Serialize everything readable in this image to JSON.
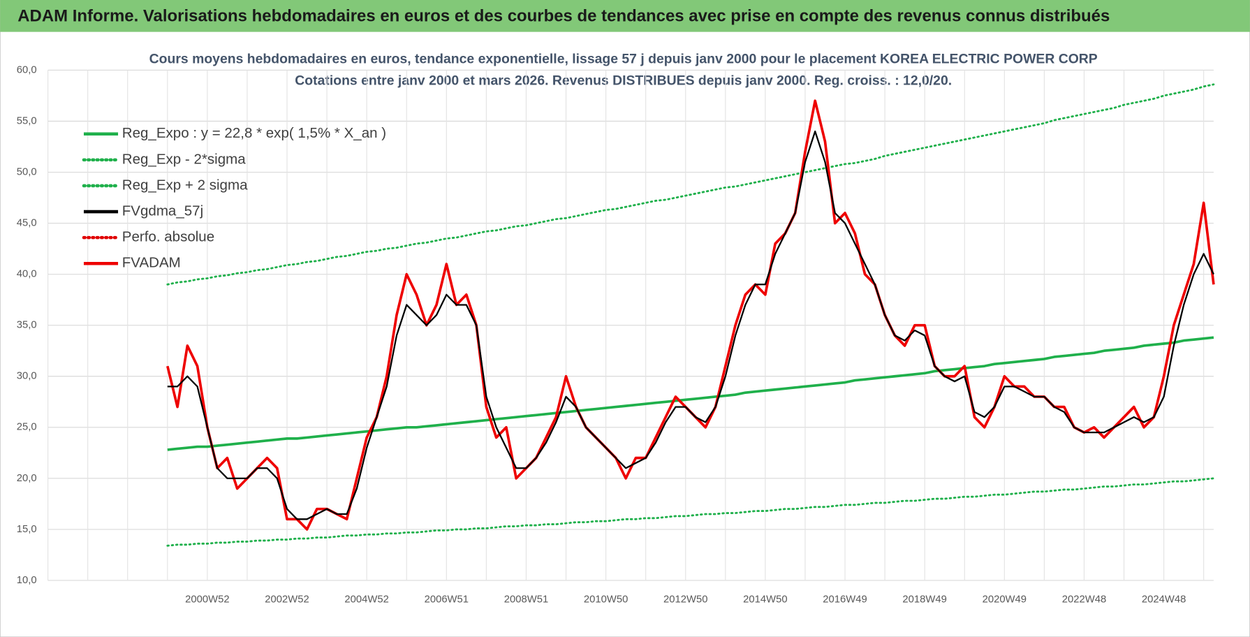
{
  "header": {
    "title": "ADAM Informe. Valorisations hebdomadaires en euros et des courbes de tendances avec prise en compte des revenus connus distribués"
  },
  "chart_data": {
    "type": "line",
    "title": "Cours moyens hebdomadaires en euros, tendance exponentielle, lissage 57 j depuis janv 2000  pour le placement KOREA ELECTRIC POWER CORP",
    "subtitle": "Cotations entre janv 2000 et mars 2026. Revenus DISTRIBUES depuis janv 2000. Reg. croiss. : 12,0/20.",
    "categories": [
      null,
      null,
      null,
      null,
      null,
      null,
      null,
      null,
      null,
      null,
      null,
      null,
      null,
      null,
      null,
      null,
      "2000W52",
      null,
      null,
      null,
      null,
      null,
      null,
      null,
      "2002W52",
      null,
      null,
      null,
      null,
      null,
      null,
      null,
      "2004W52",
      null,
      null,
      null,
      null,
      null,
      null,
      null,
      "2006W51",
      null,
      null,
      null,
      null,
      null,
      null,
      null,
      "2008W51",
      null,
      null,
      null,
      null,
      null,
      null,
      null,
      "2010W50",
      null,
      null,
      null,
      null,
      null,
      null,
      null,
      "2012W50",
      null,
      null,
      null,
      null,
      null,
      null,
      null,
      "2014W50",
      null,
      null,
      null,
      null,
      null,
      null,
      null,
      "2016W49",
      null,
      null,
      null,
      null,
      null,
      null,
      null,
      "2018W49",
      null,
      null,
      null,
      null,
      null,
      null,
      null,
      "2020W49",
      null,
      null,
      null,
      null,
      null,
      null,
      null,
      "2022W48",
      null,
      null,
      null,
      null,
      null,
      null,
      null,
      "2024W48",
      null,
      null,
      null,
      null,
      null
    ],
    "ylim": [
      10,
      60
    ],
    "yticks": [
      {
        "value": 10,
        "label": "10,0"
      },
      {
        "value": 15,
        "label": "15,0"
      },
      {
        "value": 20,
        "label": "20,0"
      },
      {
        "value": 25,
        "label": "25,0"
      },
      {
        "value": 30,
        "label": "30,0"
      },
      {
        "value": 35,
        "label": "35,0"
      },
      {
        "value": 40,
        "label": "40,0"
      },
      {
        "value": 45,
        "label": "45,0"
      },
      {
        "value": 50,
        "label": "50,0"
      },
      {
        "value": 55,
        "label": "55,0"
      },
      {
        "value": 60,
        "label": "60,0"
      }
    ],
    "grid": true,
    "legend": "top-left",
    "series": [
      {
        "name": "Reg_Expo : y = 22,8 * exp( 1,5% *  X_an )",
        "color": "#1fb04b",
        "line_style": "solid",
        "values": [
          null,
          null,
          null,
          null,
          null,
          null,
          null,
          null,
          null,
          null,
          null,
          null,
          22.8,
          22.9,
          23.0,
          23.1,
          23.1,
          23.2,
          23.3,
          23.4,
          23.5,
          23.6,
          23.7,
          23.8,
          23.9,
          23.9,
          24.0,
          24.1,
          24.2,
          24.3,
          24.4,
          24.5,
          24.6,
          24.7,
          24.8,
          24.9,
          25.0,
          25.0,
          25.1,
          25.2,
          25.3,
          25.4,
          25.5,
          25.6,
          25.7,
          25.8,
          25.9,
          26.0,
          26.1,
          26.2,
          26.3,
          26.4,
          26.5,
          26.6,
          26.7,
          26.8,
          26.9,
          27.0,
          27.1,
          27.2,
          27.3,
          27.4,
          27.5,
          27.6,
          27.7,
          27.8,
          27.9,
          28.0,
          28.1,
          28.2,
          28.4,
          28.5,
          28.6,
          28.7,
          28.8,
          28.9,
          29.0,
          29.1,
          29.2,
          29.3,
          29.4,
          29.6,
          29.7,
          29.8,
          29.9,
          30.0,
          30.1,
          30.2,
          30.3,
          30.5,
          30.6,
          30.7,
          30.8,
          30.9,
          31.0,
          31.2,
          31.3,
          31.4,
          31.5,
          31.6,
          31.7,
          31.9,
          32.0,
          32.1,
          32.2,
          32.3,
          32.5,
          32.6,
          32.7,
          32.8,
          33.0,
          33.1,
          33.2,
          33.3,
          33.5,
          33.6,
          33.7,
          33.8
        ]
      },
      {
        "name": "Reg_Exp - 2*sigma",
        "color": "#1fb04b",
        "line_style": "dotted",
        "values": [
          null,
          null,
          null,
          null,
          null,
          null,
          null,
          null,
          null,
          null,
          null,
          null,
          13.4,
          13.5,
          13.5,
          13.6,
          13.6,
          13.7,
          13.7,
          13.8,
          13.8,
          13.9,
          13.9,
          14.0,
          14.0,
          14.1,
          14.1,
          14.2,
          14.2,
          14.3,
          14.4,
          14.4,
          14.5,
          14.5,
          14.6,
          14.6,
          14.7,
          14.7,
          14.8,
          14.9,
          14.9,
          15.0,
          15.0,
          15.1,
          15.1,
          15.2,
          15.3,
          15.3,
          15.4,
          15.4,
          15.5,
          15.5,
          15.6,
          15.7,
          15.7,
          15.8,
          15.8,
          15.9,
          16.0,
          16.0,
          16.1,
          16.1,
          16.2,
          16.3,
          16.3,
          16.4,
          16.5,
          16.5,
          16.6,
          16.6,
          16.7,
          16.8,
          16.8,
          16.9,
          17.0,
          17.0,
          17.1,
          17.2,
          17.2,
          17.3,
          17.4,
          17.4,
          17.5,
          17.6,
          17.6,
          17.7,
          17.8,
          17.8,
          17.9,
          18.0,
          18.0,
          18.1,
          18.2,
          18.2,
          18.3,
          18.4,
          18.4,
          18.5,
          18.6,
          18.7,
          18.7,
          18.8,
          18.9,
          18.9,
          19.0,
          19.1,
          19.2,
          19.2,
          19.3,
          19.4,
          19.4,
          19.5,
          19.6,
          19.7,
          19.7,
          19.8,
          19.9,
          20.0
        ]
      },
      {
        "name": "Reg_Exp + 2 sigma",
        "color": "#1fb04b",
        "line_style": "dotted",
        "values": [
          null,
          null,
          null,
          null,
          null,
          null,
          null,
          null,
          null,
          null,
          null,
          null,
          39.0,
          39.2,
          39.3,
          39.5,
          39.6,
          39.8,
          39.9,
          40.1,
          40.2,
          40.4,
          40.5,
          40.7,
          40.9,
          41.0,
          41.2,
          41.3,
          41.5,
          41.7,
          41.8,
          42.0,
          42.2,
          42.3,
          42.5,
          42.6,
          42.8,
          43.0,
          43.1,
          43.3,
          43.5,
          43.6,
          43.8,
          44.0,
          44.2,
          44.3,
          44.5,
          44.7,
          44.8,
          45.0,
          45.2,
          45.4,
          45.5,
          45.7,
          45.9,
          46.1,
          46.3,
          46.4,
          46.6,
          46.8,
          47.0,
          47.2,
          47.3,
          47.5,
          47.7,
          47.9,
          48.1,
          48.3,
          48.5,
          48.6,
          48.8,
          49.0,
          49.2,
          49.4,
          49.6,
          49.8,
          50.0,
          50.2,
          50.4,
          50.6,
          50.8,
          50.9,
          51.1,
          51.3,
          51.6,
          51.8,
          52.0,
          52.2,
          52.4,
          52.6,
          52.8,
          53.0,
          53.2,
          53.4,
          53.6,
          53.8,
          54.0,
          54.2,
          54.4,
          54.6,
          54.8,
          55.1,
          55.3,
          55.5,
          55.7,
          55.9,
          56.1,
          56.3,
          56.6,
          56.8,
          57.0,
          57.2,
          57.5,
          57.7,
          57.9,
          58.1,
          58.4,
          58.6
        ]
      },
      {
        "name": "FVgdma_57j",
        "color": "#000000",
        "line_style": "solid",
        "values": [
          null,
          null,
          null,
          null,
          null,
          null,
          null,
          null,
          null,
          null,
          null,
          null,
          29,
          29,
          30,
          29,
          25,
          21,
          20,
          20,
          20,
          21,
          21,
          20,
          17,
          16,
          16,
          16.5,
          17,
          16.5,
          16.5,
          19,
          23,
          26,
          29,
          34,
          37,
          36,
          35,
          36,
          38,
          37,
          37,
          35,
          28,
          25,
          23,
          21,
          21,
          22,
          23.5,
          25.5,
          28,
          27,
          25,
          24,
          23,
          22,
          21,
          21.5,
          22,
          23.5,
          25.5,
          27,
          27,
          26,
          25.5,
          27,
          30,
          34,
          37,
          39,
          39,
          42,
          44,
          46,
          51,
          54,
          51,
          46,
          45,
          43,
          41,
          39,
          36,
          34,
          33.5,
          34.5,
          34,
          31,
          30,
          29.5,
          30,
          26.5,
          26,
          27,
          29,
          29,
          28.5,
          28,
          28,
          27,
          26.5,
          25,
          24.5,
          24.5,
          24.5,
          25,
          25.5,
          26,
          25.5,
          26,
          28,
          33,
          37,
          40,
          42,
          40
        ]
      },
      {
        "name": "Perfo. absolue",
        "color": "#e00000",
        "line_style": "dotted",
        "values": [
          null,
          null,
          null,
          null,
          null,
          null,
          null,
          null,
          null,
          null,
          null,
          null,
          null,
          null,
          null,
          null,
          null,
          null,
          null,
          null,
          null,
          null,
          null,
          null,
          null,
          null,
          null,
          null,
          null,
          null,
          null,
          null,
          null,
          null,
          null,
          null,
          null,
          null,
          null,
          null,
          null,
          null,
          null,
          null,
          null,
          null,
          null,
          null,
          null,
          null,
          null,
          null,
          null,
          null,
          null,
          null,
          null,
          null,
          null,
          null,
          null,
          null,
          null,
          null,
          null,
          null,
          null,
          null,
          null,
          null,
          null,
          null,
          null,
          null,
          null,
          null,
          null,
          null,
          null,
          null,
          null,
          null,
          null,
          null,
          null,
          null,
          null,
          null,
          null,
          null,
          null,
          null,
          null,
          null,
          null,
          null,
          null,
          null,
          null,
          null,
          null,
          null,
          null,
          null,
          null,
          null,
          null,
          null,
          null,
          null,
          null,
          null,
          null,
          null,
          null,
          null,
          null,
          null
        ]
      },
      {
        "name": "FVADAM",
        "color": "#ee0000",
        "line_style": "solid",
        "values": [
          null,
          null,
          null,
          null,
          null,
          null,
          null,
          null,
          null,
          null,
          null,
          null,
          31,
          27,
          33,
          31,
          25,
          21,
          22,
          19,
          20,
          21,
          22,
          21,
          16,
          16,
          15,
          17,
          17,
          16.5,
          16,
          20,
          24,
          26,
          30,
          36,
          40,
          38,
          35,
          37,
          41,
          37,
          38,
          35,
          27,
          24,
          25,
          20,
          21,
          22,
          24,
          26,
          30,
          27,
          25,
          24,
          23,
          22,
          20,
          22,
          22,
          24,
          26,
          28,
          27,
          26,
          25,
          27,
          31,
          35,
          38,
          39,
          38,
          43,
          44,
          46,
          52,
          57,
          53,
          45,
          46,
          44,
          40,
          39,
          36,
          34,
          33,
          35,
          35,
          31,
          30,
          30,
          31,
          26,
          25,
          27,
          30,
          29,
          29,
          28,
          28,
          27,
          27,
          25,
          24.5,
          25,
          24,
          25,
          26,
          27,
          25,
          26,
          30,
          35,
          38,
          41,
          47,
          39
        ]
      }
    ]
  }
}
